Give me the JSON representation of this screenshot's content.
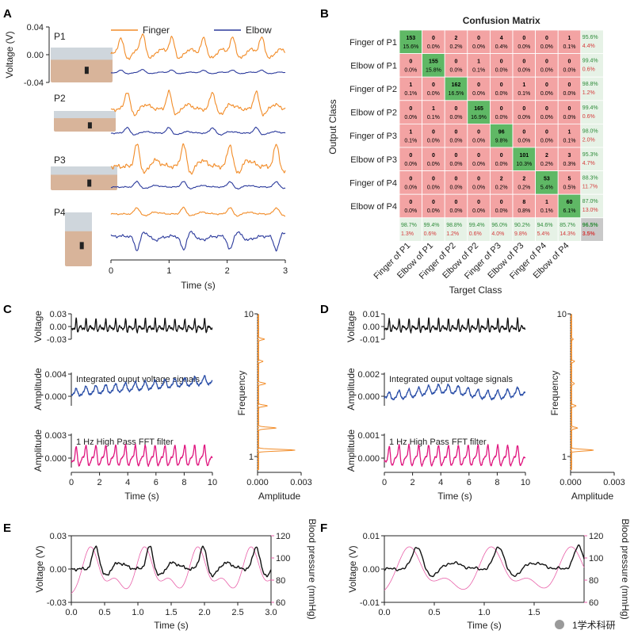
{
  "panels": [
    "A",
    "B",
    "C",
    "D",
    "E",
    "F"
  ],
  "colors": {
    "finger": "#f28c28",
    "elbow": "#2b3a9c",
    "black": "#111111",
    "blue": "#2b4fa8",
    "magenta": "#e0167f",
    "orange": "#f28c28",
    "bp": "#e85fa8",
    "green": "#5fb865",
    "red": "#f3a3a3",
    "summary": "#e6f2e6"
  },
  "chart_data": [
    {
      "panel": "A",
      "type": "line",
      "ylabel": "Voltage (V)",
      "xlabel": "Time (s)",
      "xlim": [
        0,
        3
      ],
      "x_ticks": [
        "0",
        "1",
        "2",
        "3"
      ],
      "y_ticks": [
        "0.04",
        "0.00",
        "-0.04"
      ],
      "ylim": [
        -0.04,
        0.04
      ],
      "legend": [
        {
          "name": "Finger",
          "color": "#f28c28"
        },
        {
          "name": "Elbow",
          "color": "#2b3a9c"
        }
      ],
      "subjects": [
        "P1",
        "P2",
        "P3",
        "P4"
      ],
      "series": [
        {
          "subject": "P1",
          "name": "Finger",
          "beats": [
            0.17,
            0.55,
            1.05,
            1.6,
            2.1,
            2.6
          ],
          "amplitude": 0.02
        },
        {
          "subject": "P1",
          "name": "Elbow",
          "beats": [
            0.17,
            0.55,
            1.05,
            1.6,
            2.1,
            2.6
          ],
          "amplitude": 0.006
        },
        {
          "subject": "P2",
          "name": "Finger",
          "beats": [
            0.28,
            1.0,
            1.75,
            2.5
          ],
          "amplitude": 0.022
        },
        {
          "subject": "P2",
          "name": "Elbow",
          "beats": [
            0.28,
            1.0,
            1.75,
            2.5
          ],
          "amplitude": 0.012
        },
        {
          "subject": "P3",
          "name": "Finger",
          "beats": [
            0.45,
            1.25,
            2.05,
            2.85
          ],
          "amplitude": 0.028
        },
        {
          "subject": "P3",
          "name": "Elbow",
          "beats": [
            0.45,
            1.25,
            2.05,
            2.85
          ],
          "amplitude": 0.012
        },
        {
          "subject": "P4",
          "name": "Finger",
          "beats": [
            0.45,
            1.25,
            2.05,
            2.85
          ],
          "amplitude": 0.008
        },
        {
          "subject": "P4",
          "name": "Elbow",
          "beats": [
            0.45,
            1.25,
            2.05,
            2.85
          ],
          "amplitude": 0.03
        }
      ]
    },
    {
      "panel": "B",
      "type": "heatmap",
      "title": "Confusion Matrix",
      "ylabel": "Output Class",
      "xlabel": "Target Class",
      "labels": [
        "Finger of P1",
        "Elbow of P1",
        "Finger of P2",
        "Elbow of P2",
        "Finger of P3",
        "Elbow of P3",
        "Finger of P4",
        "Elbow of P4"
      ],
      "counts": [
        [
          153,
          0,
          2,
          0,
          4,
          0,
          0,
          1
        ],
        [
          0,
          155,
          0,
          1,
          0,
          0,
          0,
          0
        ],
        [
          1,
          0,
          162,
          0,
          0,
          1,
          0,
          0
        ],
        [
          0,
          1,
          0,
          165,
          0,
          0,
          0,
          0
        ],
        [
          1,
          0,
          0,
          0,
          96,
          0,
          0,
          1
        ],
        [
          0,
          0,
          0,
          0,
          0,
          101,
          2,
          3
        ],
        [
          0,
          0,
          0,
          0,
          2,
          2,
          53,
          5
        ],
        [
          0,
          0,
          0,
          0,
          0,
          8,
          1,
          60
        ]
      ],
      "percents": [
        [
          "15.6%",
          "0.0%",
          "0.2%",
          "0.0%",
          "0.4%",
          "0.0%",
          "0.0%",
          "0.1%"
        ],
        [
          "0.0%",
          "15.8%",
          "0.0%",
          "0.1%",
          "0.0%",
          "0.0%",
          "0.0%",
          "0.0%"
        ],
        [
          "0.1%",
          "0.0%",
          "16.5%",
          "0.0%",
          "0.0%",
          "0.1%",
          "0.0%",
          "0.0%"
        ],
        [
          "0.0%",
          "0.1%",
          "0.0%",
          "16.9%",
          "0.0%",
          "0.0%",
          "0.0%",
          "0.0%"
        ],
        [
          "0.1%",
          "0.0%",
          "0.0%",
          "0.0%",
          "9.8%",
          "0.0%",
          "0.0%",
          "0.1%"
        ],
        [
          "0.0%",
          "0.0%",
          "0.0%",
          "0.0%",
          "0.0%",
          "10.3%",
          "0.2%",
          "0.3%"
        ],
        [
          "0.0%",
          "0.0%",
          "0.0%",
          "0.0%",
          "0.2%",
          "0.2%",
          "5.4%",
          "0.5%"
        ],
        [
          "0.0%",
          "0.0%",
          "0.0%",
          "0.0%",
          "0.0%",
          "0.8%",
          "0.1%",
          "6.1%"
        ]
      ],
      "row_summary": [
        [
          "95.6%",
          "4.4%"
        ],
        [
          "99.4%",
          "0.6%"
        ],
        [
          "98.8%",
          "1.2%"
        ],
        [
          "99.4%",
          "0.6%"
        ],
        [
          "98.0%",
          "2.0%"
        ],
        [
          "95.3%",
          "4.7%"
        ],
        [
          "88.3%",
          "11.7%"
        ],
        [
          "87.0%",
          "13.0%"
        ]
      ],
      "col_summary": [
        [
          "98.7%",
          "1.3%"
        ],
        [
          "99.4%",
          "0.6%"
        ],
        [
          "98.8%",
          "1.2%"
        ],
        [
          "99.4%",
          "0.6%"
        ],
        [
          "96.0%",
          "4.0%"
        ],
        [
          "90.2%",
          "9.8%"
        ],
        [
          "94.6%",
          "5.4%"
        ],
        [
          "85.7%",
          "14.3%"
        ]
      ],
      "overall": [
        "96.5%",
        "3.5%"
      ]
    },
    {
      "panel": "C",
      "type": "line",
      "xlabel": "Time (s)",
      "xlim": [
        0,
        10
      ],
      "x_ticks": [
        "0",
        "2",
        "4",
        "6",
        "8",
        "10"
      ],
      "subplots": [
        {
          "ylabel": "Voltage",
          "y_ticks": [
            "0.03",
            "0.00",
            "-0.03"
          ],
          "color": "#111111",
          "beats": 14,
          "trend": "flat"
        },
        {
          "ylabel": "Amplitude",
          "y_ticks": [
            "0.004",
            "0.000"
          ],
          "color": "#2b4fa8",
          "annotation": "Integrated ouput voltage signals",
          "beats": 14,
          "trend": "rising"
        },
        {
          "ylabel": "Amplitude",
          "y_ticks": [
            "0.003",
            "0.000"
          ],
          "color": "#e0167f",
          "annotation": "1 Hz High Pass FFT filter",
          "beats": 14,
          "trend": "flat"
        }
      ],
      "fft": {
        "ylabel": "Frequency",
        "xlabel": "Amplitude",
        "y_ticks": [
          "10",
          "1"
        ],
        "x_ticks": [
          "0.000",
          "0.003"
        ],
        "peaks": [
          {
            "freq": 1.4,
            "amp": 0.0025
          },
          {
            "freq": 2.8,
            "amp": 0.0012
          },
          {
            "freq": 4.2,
            "amp": 0.0006
          },
          {
            "freq": 5.6,
            "amp": 0.0005
          },
          {
            "freq": 7.0,
            "amp": 0.0003
          },
          {
            "freq": 8.4,
            "amp": 0.0004
          }
        ]
      }
    },
    {
      "panel": "D",
      "type": "line",
      "xlabel": "Time (s)",
      "xlim": [
        0,
        10
      ],
      "x_ticks": [
        "0",
        "2",
        "4",
        "6",
        "8",
        "10"
      ],
      "subplots": [
        {
          "ylabel": "Voltage",
          "y_ticks": [
            "0.01",
            "0.00",
            "-0.01"
          ],
          "color": "#111111",
          "beats": 14,
          "trend": "flat"
        },
        {
          "ylabel": "Amplitude",
          "y_ticks": [
            "0.002",
            "0.000"
          ],
          "color": "#2b4fa8",
          "annotation": "Integrated ouput voltage signals",
          "beats": 14,
          "trend": "wavy"
        },
        {
          "ylabel": "Amplitude",
          "y_ticks": [
            "0.001",
            "0.000"
          ],
          "color": "#e0167f",
          "annotation": "1 Hz High Pass FFT filter",
          "beats": 14,
          "trend": "flat"
        }
      ],
      "fft": {
        "ylabel": "Frequency",
        "xlabel": "Amplitude",
        "y_ticks": [
          "10",
          "1"
        ],
        "x_ticks": [
          "0.000",
          "0.003"
        ],
        "peaks": [
          {
            "freq": 1.4,
            "amp": 0.0015
          },
          {
            "freq": 2.8,
            "amp": 0.0004
          },
          {
            "freq": 4.2,
            "amp": 0.0003
          },
          {
            "freq": 5.6,
            "amp": 0.0002
          },
          {
            "freq": 7.0,
            "amp": 0.0002
          },
          {
            "freq": 8.4,
            "amp": 0.0001
          }
        ]
      }
    },
    {
      "panel": "E",
      "type": "line",
      "xlabel": "Time (s)",
      "ylabel": "Voltage (V)",
      "y2label": "Blood pressure (mmHg)",
      "xlim": [
        0,
        3
      ],
      "x_ticks": [
        "0.0",
        "0.5",
        "1.0",
        "1.5",
        "2.0",
        "2.5",
        "3.0"
      ],
      "y_ticks": [
        "0.03",
        "0.00",
        "-0.03"
      ],
      "y2_ticks": [
        "120",
        "100",
        "80",
        "60"
      ],
      "beats": [
        0.37,
        1.18,
        1.98,
        2.78
      ]
    },
    {
      "panel": "F",
      "type": "line",
      "xlabel": "Time (s)",
      "ylabel": "Voltage (V)",
      "y2label": "Blood pressure (mmHg)",
      "xlim": [
        0,
        2
      ],
      "x_ticks": [
        "0.0",
        "0.5",
        "1.0",
        "1.5"
      ],
      "y_ticks": [
        "0.01",
        "0.00",
        "-0.01"
      ],
      "y2_ticks": [
        "120",
        "100",
        "80",
        "60"
      ],
      "beats": [
        0.33,
        1.15,
        1.95
      ]
    }
  ],
  "watermark": "1学术科研"
}
